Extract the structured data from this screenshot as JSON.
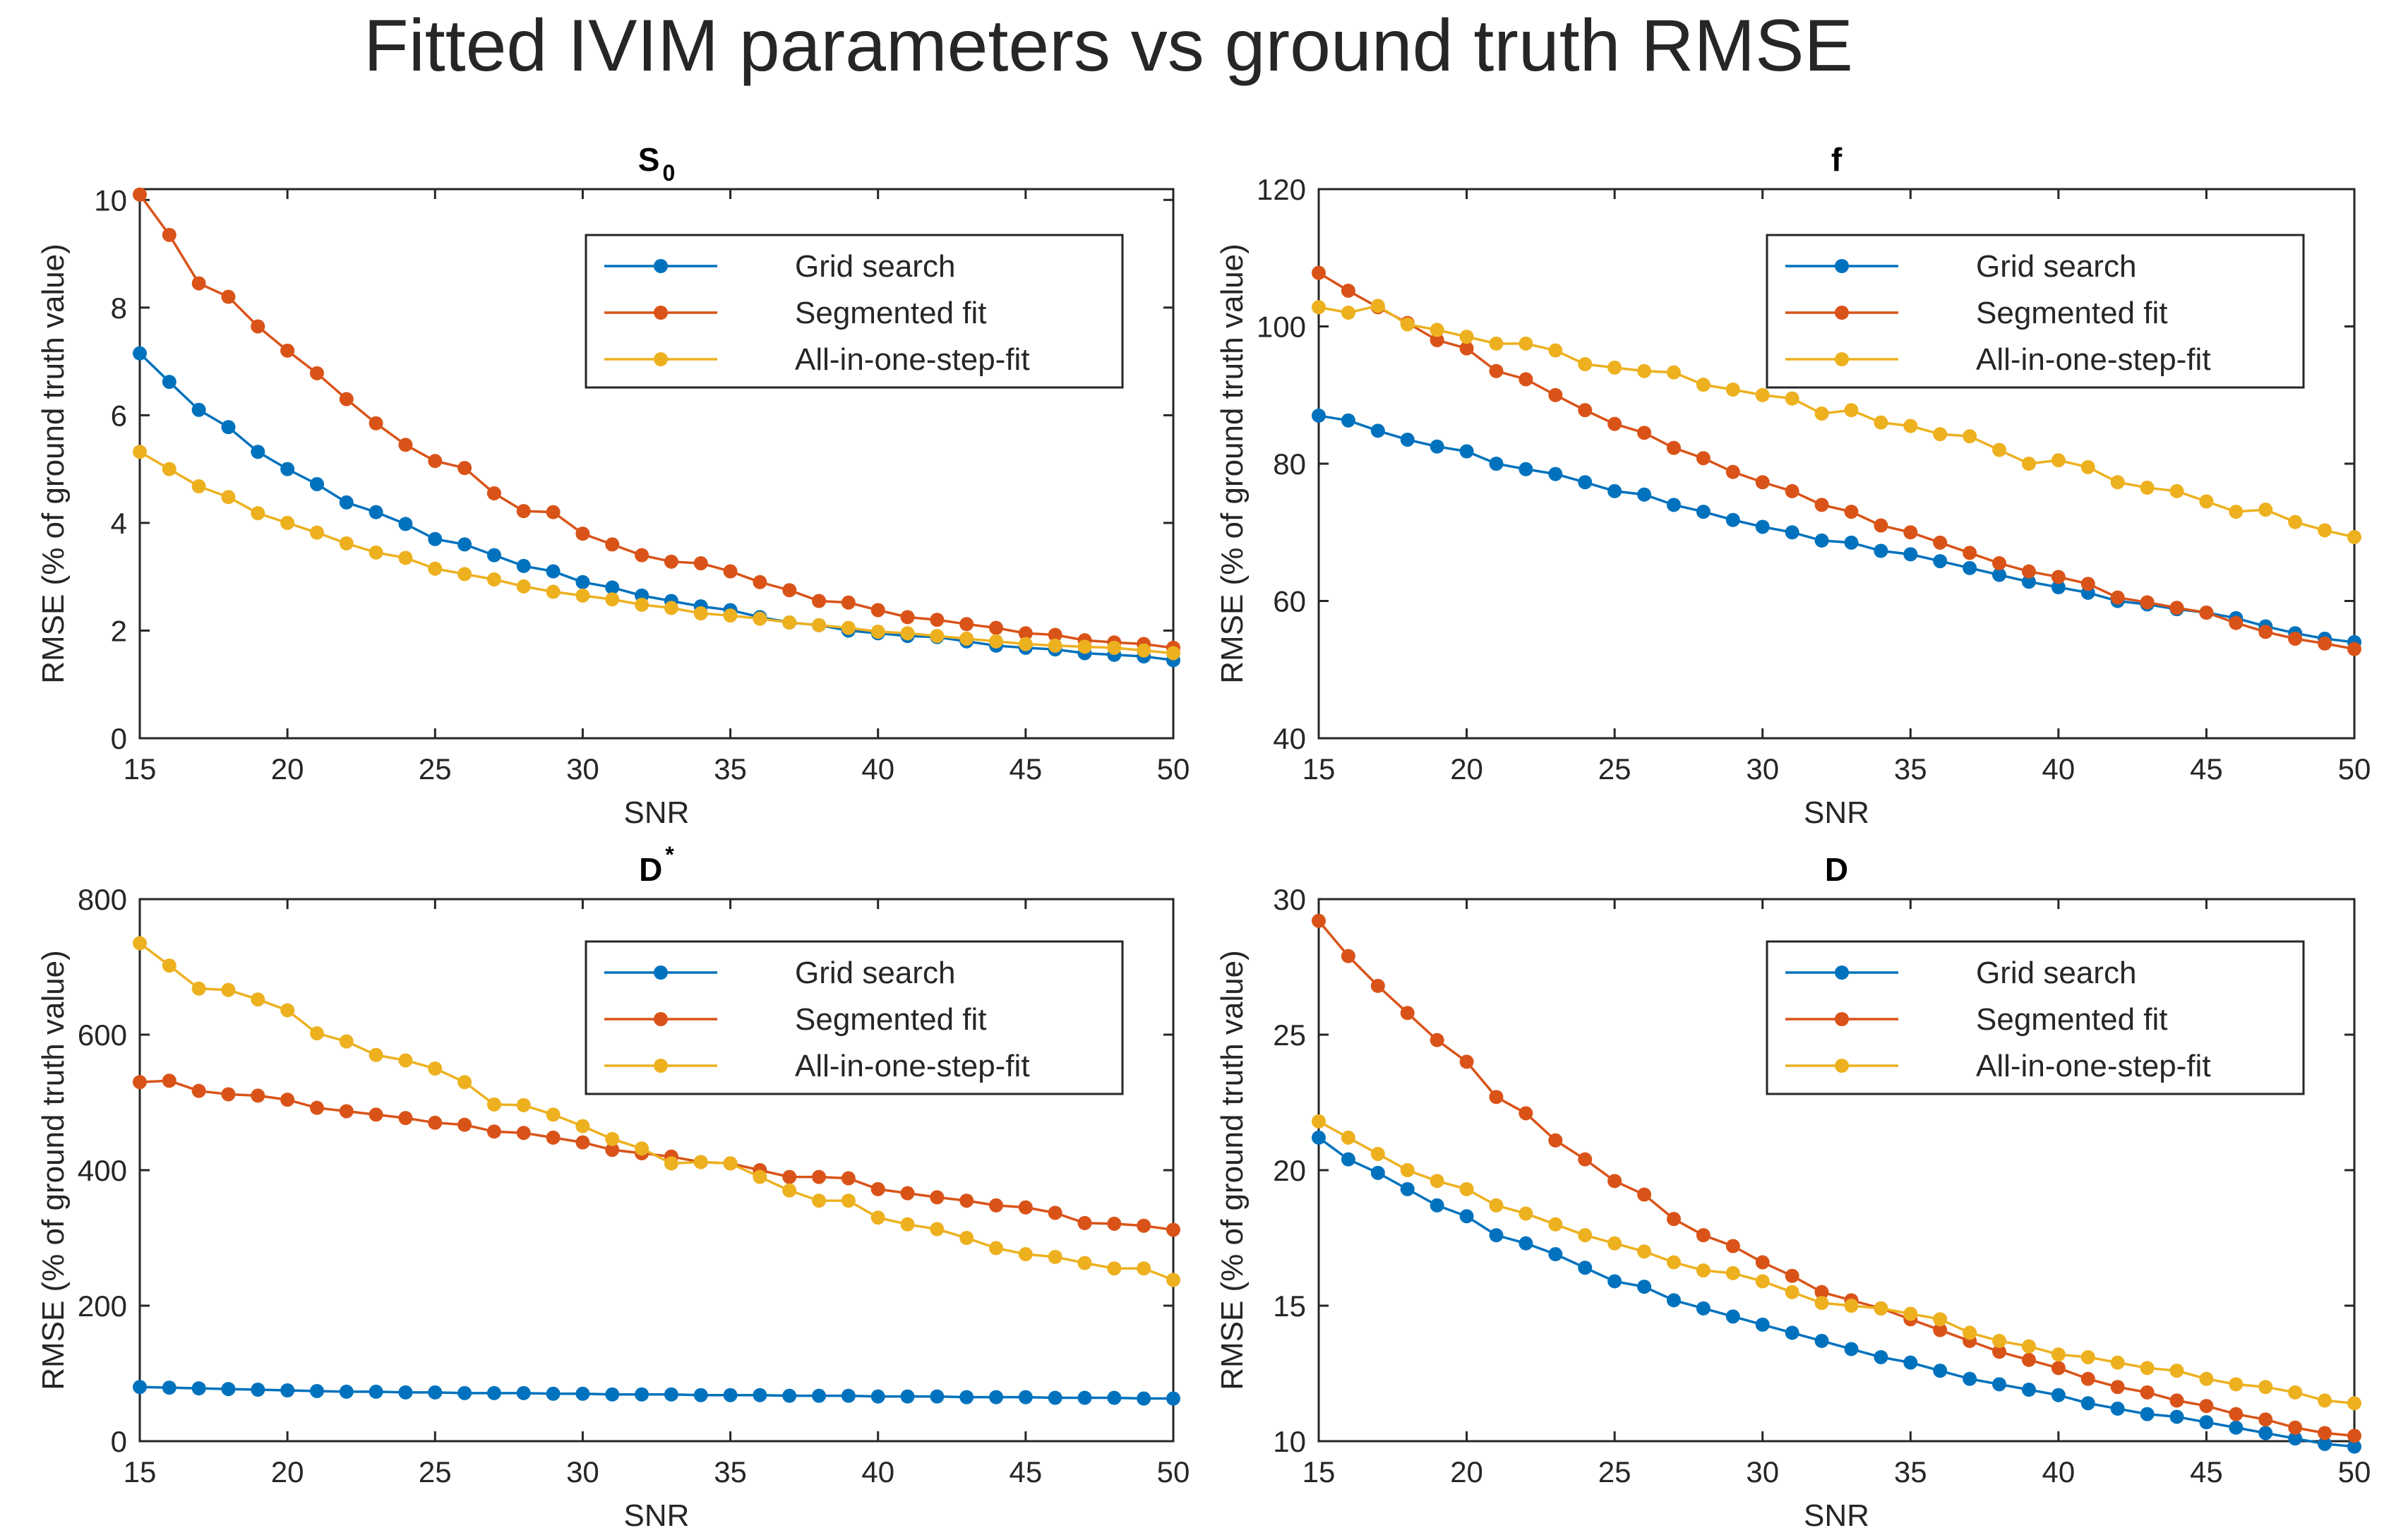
{
  "figure_title": "Fitted IVIM parameters vs ground truth RMSE",
  "legend_labels": [
    "Grid search",
    "Segmented fit",
    "All-in-one-step-fit"
  ],
  "series_colors": [
    "#0072bd",
    "#d95319",
    "#edb120"
  ],
  "chart_data": [
    {
      "type": "line",
      "title": "S",
      "title_sub": "0",
      "xlabel": "SNR",
      "ylabel": "RMSE (% of ground truth value)",
      "xlim": [
        15,
        50
      ],
      "ylim": [
        0,
        10.2
      ],
      "xticks": [
        15,
        20,
        25,
        30,
        35,
        40,
        45,
        50
      ],
      "yticks": [
        0,
        2,
        4,
        6,
        8,
        10
      ],
      "x": [
        15,
        16,
        17,
        18,
        19,
        20,
        21,
        22,
        23,
        24,
        25,
        26,
        27,
        28,
        29,
        30,
        31,
        32,
        33,
        34,
        35,
        36,
        37,
        38,
        39,
        40,
        41,
        42,
        43,
        44,
        45,
        46,
        47,
        48,
        49,
        50
      ],
      "series": [
        {
          "name": "Grid search",
          "values": [
            7.15,
            6.62,
            6.1,
            5.78,
            5.32,
            5.0,
            4.72,
            4.38,
            4.2,
            3.98,
            3.7,
            3.6,
            3.4,
            3.2,
            3.1,
            2.9,
            2.8,
            2.65,
            2.55,
            2.45,
            2.38,
            2.25,
            2.15,
            2.1,
            2.0,
            1.95,
            1.9,
            1.88,
            1.8,
            1.72,
            1.68,
            1.65,
            1.58,
            1.55,
            1.52,
            1.45
          ]
        },
        {
          "name": "Segmented fit",
          "values": [
            10.1,
            9.35,
            8.45,
            8.2,
            7.65,
            7.2,
            6.78,
            6.3,
            5.85,
            5.45,
            5.15,
            5.02,
            4.55,
            4.22,
            4.2,
            3.8,
            3.6,
            3.4,
            3.28,
            3.25,
            3.1,
            2.9,
            2.75,
            2.55,
            2.52,
            2.38,
            2.25,
            2.2,
            2.12,
            2.05,
            1.95,
            1.92,
            1.82,
            1.78,
            1.75,
            1.68
          ]
        },
        {
          "name": "All-in-one-step-fit",
          "values": [
            5.32,
            5.0,
            4.68,
            4.48,
            4.18,
            4.0,
            3.82,
            3.62,
            3.45,
            3.35,
            3.15,
            3.05,
            2.95,
            2.82,
            2.72,
            2.65,
            2.58,
            2.48,
            2.42,
            2.32,
            2.28,
            2.22,
            2.15,
            2.1,
            2.05,
            1.98,
            1.95,
            1.9,
            1.85,
            1.8,
            1.75,
            1.72,
            1.7,
            1.68,
            1.63,
            1.58
          ]
        }
      ]
    },
    {
      "type": "line",
      "title": "f",
      "title_sub": "",
      "xlabel": "SNR",
      "ylabel": "RMSE (% of ground truth value)",
      "xlim": [
        15,
        50
      ],
      "ylim": [
        40,
        120
      ],
      "xticks": [
        15,
        20,
        25,
        30,
        35,
        40,
        45,
        50
      ],
      "yticks": [
        40,
        60,
        80,
        100,
        120
      ],
      "x": [
        15,
        16,
        17,
        18,
        19,
        20,
        21,
        22,
        23,
        24,
        25,
        26,
        27,
        28,
        29,
        30,
        31,
        32,
        33,
        34,
        35,
        36,
        37,
        38,
        39,
        40,
        41,
        42,
        43,
        44,
        45,
        46,
        47,
        48,
        49,
        50
      ],
      "series": [
        {
          "name": "Grid search",
          "values": [
            87.0,
            86.3,
            84.8,
            83.5,
            82.5,
            81.8,
            80.0,
            79.2,
            78.5,
            77.3,
            76.0,
            75.5,
            74.0,
            73.0,
            71.8,
            70.8,
            70.0,
            68.8,
            68.5,
            67.3,
            66.8,
            65.8,
            64.8,
            63.8,
            62.8,
            62.0,
            61.2,
            60.0,
            59.5,
            58.8,
            58.3,
            57.5,
            56.3,
            55.3,
            54.5,
            54.0
          ]
        },
        {
          "name": "Segmented fit",
          "values": [
            107.8,
            105.2,
            102.8,
            100.5,
            98.0,
            96.8,
            93.5,
            92.3,
            90.0,
            87.8,
            85.8,
            84.5,
            82.3,
            80.8,
            78.8,
            77.3,
            76.0,
            74.0,
            73.0,
            71.0,
            70.0,
            68.5,
            67.0,
            65.5,
            64.3,
            63.5,
            62.5,
            60.5,
            59.8,
            59.0,
            58.3,
            56.8,
            55.5,
            54.5,
            53.8,
            53.0
          ]
        },
        {
          "name": "All-in-one-step-fit",
          "values": [
            102.8,
            102.0,
            103.0,
            100.3,
            99.5,
            98.5,
            97.5,
            97.5,
            96.5,
            94.5,
            94.0,
            93.5,
            93.3,
            91.5,
            90.8,
            90.0,
            89.5,
            87.3,
            87.8,
            86.0,
            85.5,
            84.3,
            84.0,
            82.0,
            80.0,
            80.5,
            79.5,
            77.3,
            76.5,
            76.0,
            74.5,
            73.0,
            73.3,
            71.5,
            70.3,
            69.3
          ]
        }
      ]
    },
    {
      "type": "line",
      "title": "D",
      "title_sub": "*",
      "xlabel": "SNR",
      "ylabel": "RMSE (% of ground truth value)",
      "xlim": [
        15,
        50
      ],
      "ylim": [
        0,
        800
      ],
      "xticks": [
        15,
        20,
        25,
        30,
        35,
        40,
        45,
        50
      ],
      "yticks": [
        0,
        200,
        400,
        600,
        800
      ],
      "x": [
        15,
        16,
        17,
        18,
        19,
        20,
        21,
        22,
        23,
        24,
        25,
        26,
        27,
        28,
        29,
        30,
        31,
        32,
        33,
        34,
        35,
        36,
        37,
        38,
        39,
        40,
        41,
        42,
        43,
        44,
        45,
        46,
        47,
        48,
        49,
        50
      ],
      "series": [
        {
          "name": "Grid search",
          "values": [
            80,
            79,
            78,
            77,
            76,
            75,
            74,
            73,
            73,
            72,
            72,
            71,
            71,
            71,
            70,
            70,
            69,
            69,
            69,
            68,
            68,
            68,
            67,
            67,
            67,
            66,
            66,
            66,
            65,
            65,
            65,
            64,
            64,
            64,
            63,
            63
          ]
        },
        {
          "name": "Segmented fit",
          "values": [
            530,
            532,
            517,
            512,
            510,
            504,
            492,
            487,
            482,
            477,
            470,
            467,
            457,
            455,
            448,
            441,
            430,
            425,
            420,
            412,
            410,
            400,
            390,
            390,
            388,
            372,
            366,
            360,
            355,
            348,
            345,
            337,
            322,
            321,
            318,
            312
          ]
        },
        {
          "name": "All-in-one-step-fit",
          "values": [
            735,
            702,
            668,
            666,
            652,
            636,
            602,
            590,
            570,
            562,
            550,
            530,
            497,
            496,
            482,
            465,
            446,
            432,
            410,
            412,
            410,
            390,
            370,
            355,
            355,
            330,
            320,
            313,
            300,
            285,
            276,
            272,
            263,
            255,
            255,
            238
          ]
        }
      ]
    },
    {
      "type": "line",
      "title": "D",
      "title_sub": "",
      "xlabel": "SNR",
      "ylabel": "RMSE (% of ground truth value)",
      "xlim": [
        15,
        50
      ],
      "ylim": [
        10,
        30
      ],
      "xticks": [
        15,
        20,
        25,
        30,
        35,
        40,
        45,
        50
      ],
      "yticks": [
        10,
        15,
        20,
        25,
        30
      ],
      "x": [
        15,
        16,
        17,
        18,
        19,
        20,
        21,
        22,
        23,
        24,
        25,
        26,
        27,
        28,
        29,
        30,
        31,
        32,
        33,
        34,
        35,
        36,
        37,
        38,
        39,
        40,
        41,
        42,
        43,
        44,
        45,
        46,
        47,
        48,
        49,
        50
      ],
      "series": [
        {
          "name": "Grid search",
          "values": [
            21.2,
            20.4,
            19.9,
            19.3,
            18.7,
            18.3,
            17.6,
            17.3,
            16.9,
            16.4,
            15.9,
            15.7,
            15.2,
            14.9,
            14.6,
            14.3,
            14.0,
            13.7,
            13.4,
            13.1,
            12.9,
            12.6,
            12.3,
            12.1,
            11.9,
            11.7,
            11.4,
            11.2,
            11.0,
            10.9,
            10.7,
            10.5,
            10.3,
            10.1,
            9.9,
            9.8
          ]
        },
        {
          "name": "Segmented fit",
          "values": [
            29.2,
            27.9,
            26.8,
            25.8,
            24.8,
            24.0,
            22.7,
            22.1,
            21.1,
            20.4,
            19.6,
            19.1,
            18.2,
            17.6,
            17.2,
            16.6,
            16.1,
            15.5,
            15.2,
            14.9,
            14.5,
            14.1,
            13.7,
            13.3,
            13.0,
            12.7,
            12.3,
            12.0,
            11.8,
            11.5,
            11.3,
            11.0,
            10.8,
            10.5,
            10.3,
            10.2
          ]
        },
        {
          "name": "All-in-one-step-fit",
          "values": [
            21.8,
            21.2,
            20.6,
            20.0,
            19.6,
            19.3,
            18.7,
            18.4,
            18.0,
            17.6,
            17.3,
            17.0,
            16.6,
            16.3,
            16.2,
            15.9,
            15.5,
            15.1,
            15.0,
            14.9,
            14.7,
            14.5,
            14.0,
            13.7,
            13.5,
            13.2,
            13.1,
            12.9,
            12.7,
            12.6,
            12.3,
            12.1,
            12.0,
            11.8,
            11.5,
            11.4
          ]
        }
      ]
    }
  ]
}
